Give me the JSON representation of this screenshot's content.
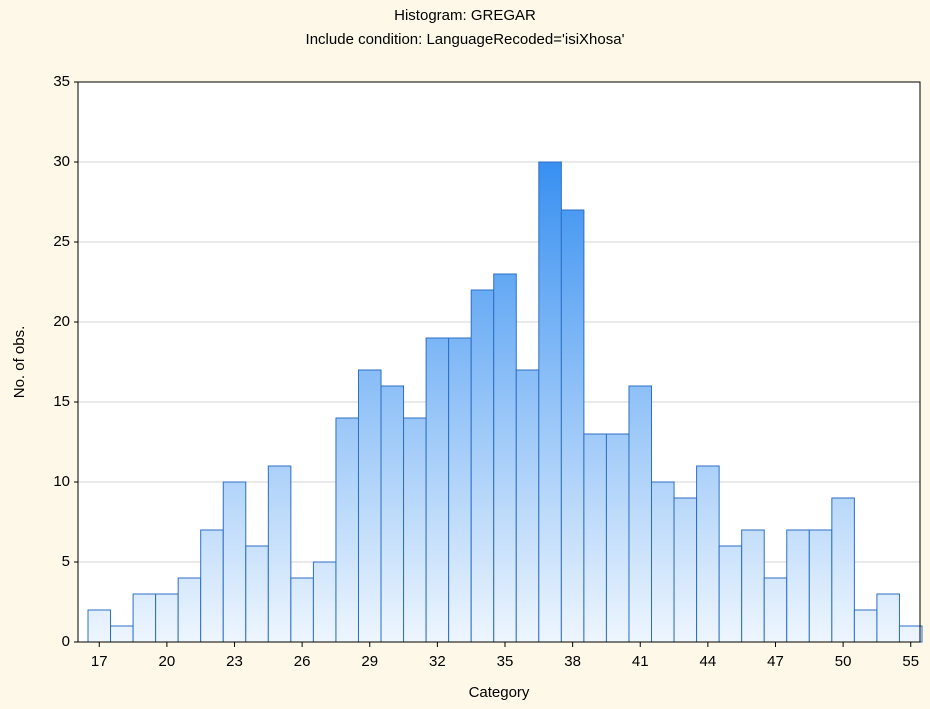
{
  "chart_data": {
    "type": "bar",
    "title": "Histogram: GREGAR",
    "subtitle": "Include condition: LanguageRecoded='isiXhosa'",
    "x_label": "Category",
    "y_label": "No. of obs.",
    "categories": [
      "17",
      null,
      null,
      "20",
      null,
      null,
      "23",
      null,
      null,
      "26",
      null,
      null,
      "29",
      null,
      null,
      "32",
      null,
      null,
      "35",
      null,
      null,
      "38",
      null,
      null,
      "41",
      null,
      null,
      "44",
      null,
      null,
      "47",
      null,
      null,
      "50",
      null,
      null,
      "55"
    ],
    "values": [
      2,
      1,
      3,
      3,
      4,
      7,
      10,
      6,
      11,
      4,
      5,
      14,
      17,
      16,
      14,
      19,
      19,
      22,
      23,
      17,
      30,
      27,
      13,
      13,
      16,
      10,
      9,
      11,
      6,
      7,
      4,
      7,
      7,
      9,
      2,
      3,
      1
    ],
    "color": "#1a7fef",
    "ylim": [
      0,
      35
    ],
    "yticks": [
      0,
      5,
      10,
      15,
      20,
      25,
      30,
      35
    ],
    "grid": true
  }
}
